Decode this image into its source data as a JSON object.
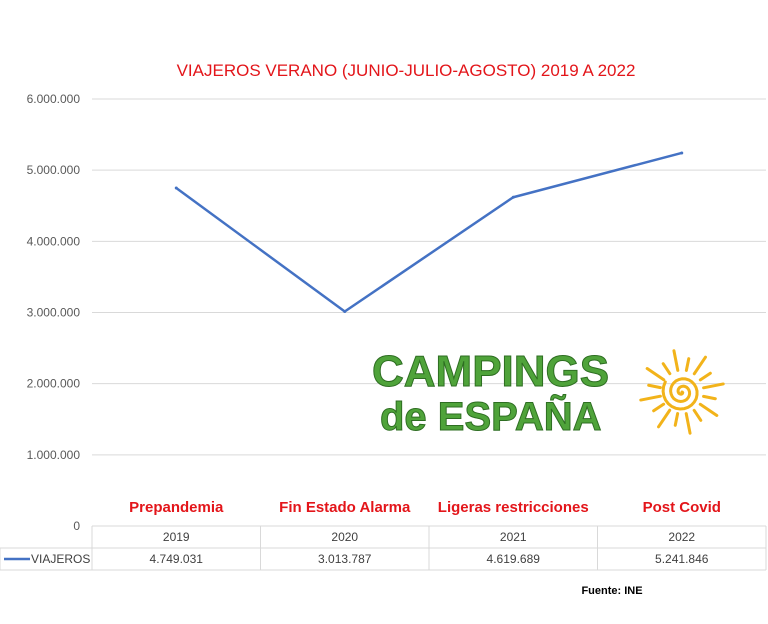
{
  "chart_data": {
    "type": "line",
    "title": "VIAJEROS VERANO (JUNIO-JULIO-AGOSTO) 2019 A 2022",
    "categories": [
      "2019",
      "2020",
      "2021",
      "2022"
    ],
    "series": [
      {
        "name": "VIAJEROS",
        "values": [
          4749031,
          3013787,
          4619689,
          5241846
        ],
        "color": "#4472c4"
      }
    ],
    "value_labels": [
      "4.749.031",
      "3.013.787",
      "4.619.689",
      "5.241.846"
    ],
    "yticks": [
      "0",
      "1.000.000",
      "2.000.000",
      "3.000.000",
      "4.000.000",
      "5.000.000",
      "6.000.000"
    ],
    "ylim": [
      0,
      6000000
    ],
    "grid": true,
    "legend": "data-table",
    "annotations": [
      "Prepandemia",
      "Fin Estado  Alarma",
      "Ligeras restricciones",
      "Post Covid"
    ],
    "source": "Fuente: INE"
  },
  "logo": {
    "line1": "CAMPINGS",
    "line2": "de ESPAÑA",
    "sun_color": "#f2b31a"
  },
  "colors": {
    "title": "#e3151a",
    "annotation": "#e3151a",
    "line": "#4472c4",
    "logo_text": "#4fa33a"
  }
}
